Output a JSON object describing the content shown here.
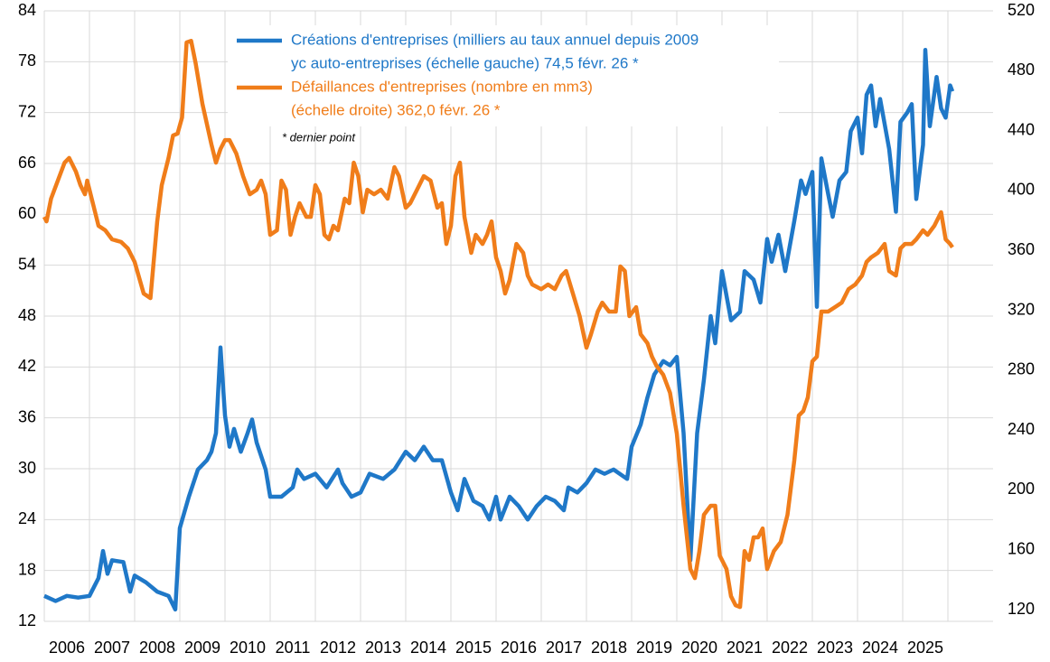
{
  "chart_data": {
    "type": "line",
    "xlim": [
      2006,
      2027
    ],
    "xticks": [
      2006,
      2007,
      2008,
      2009,
      2010,
      2011,
      2012,
      2013,
      2014,
      2015,
      2016,
      2017,
      2018,
      2019,
      2020,
      2021,
      2022,
      2023,
      2024,
      2025
    ],
    "ylim": [
      12,
      84
    ],
    "yticks": [
      12,
      18,
      24,
      30,
      36,
      42,
      48,
      54,
      60,
      66,
      72,
      78,
      84
    ],
    "y2lim": [
      112.2,
      520
    ],
    "y2ticks": [
      120,
      160,
      200,
      240,
      280,
      320,
      360,
      400,
      440,
      480,
      520
    ],
    "grid": true,
    "legend": "top",
    "note": "* dernier point",
    "series": [
      {
        "name": [
          "Créations d'entreprises (milliers au taux annuel depuis 2009",
          "yc auto-entreprises (échelle gauche)  74,5 févr. 26 *"
        ],
        "color": "#1f78c8",
        "axis": "y",
        "x": [
          2006.0,
          2006.25,
          2006.5,
          2006.75,
          2007.0,
          2007.2,
          2007.3,
          2007.4,
          2007.5,
          2007.75,
          2007.9,
          2008.0,
          2008.25,
          2008.5,
          2008.75,
          2008.9,
          2009.0,
          2009.2,
          2009.4,
          2009.6,
          2009.7,
          2009.8,
          2009.9,
          2010.0,
          2010.1,
          2010.2,
          2010.35,
          2010.5,
          2010.6,
          2010.7,
          2010.9,
          2011.0,
          2011.25,
          2011.5,
          2011.6,
          2011.75,
          2012.0,
          2012.25,
          2012.5,
          2012.6,
          2012.8,
          2013.0,
          2013.2,
          2013.5,
          2013.75,
          2014.0,
          2014.2,
          2014.4,
          2014.6,
          2014.8,
          2015.0,
          2015.15,
          2015.3,
          2015.5,
          2015.7,
          2015.85,
          2016.0,
          2016.1,
          2016.3,
          2016.5,
          2016.7,
          2016.9,
          2017.1,
          2017.3,
          2017.5,
          2017.6,
          2017.8,
          2018.0,
          2018.2,
          2018.4,
          2018.6,
          2018.9,
          2019.0,
          2019.2,
          2019.35,
          2019.5,
          2019.7,
          2019.85,
          2020.0,
          2020.15,
          2020.3,
          2020.45,
          2020.6,
          2020.75,
          2020.85,
          2021.0,
          2021.2,
          2021.4,
          2021.5,
          2021.7,
          2021.85,
          2022.0,
          2022.1,
          2022.25,
          2022.4,
          2022.6,
          2022.75,
          2022.85,
          2023.0,
          2023.1,
          2023.2,
          2023.35,
          2023.45,
          2023.6,
          2023.75,
          2023.85,
          2024.0,
          2024.1,
          2024.2,
          2024.3,
          2024.4,
          2024.5,
          2024.7,
          2024.85,
          2024.95,
          2025.1,
          2025.2,
          2025.3,
          2025.45,
          2025.5,
          2025.6,
          2025.75,
          2025.85,
          2025.95,
          2026.05,
          2026.1
        ],
        "values": [
          15.0,
          14.4,
          15.0,
          14.8,
          15.0,
          17.1,
          20.3,
          17.6,
          19.2,
          19.0,
          15.5,
          17.4,
          16.6,
          15.5,
          15.0,
          13.4,
          23.0,
          26.7,
          29.9,
          31.0,
          32.0,
          34.2,
          44.3,
          36.3,
          32.6,
          34.7,
          32.0,
          34.2,
          35.8,
          33.1,
          29.9,
          26.7,
          26.7,
          27.8,
          29.9,
          28.8,
          29.4,
          27.8,
          29.9,
          28.3,
          26.7,
          27.2,
          29.4,
          28.8,
          29.9,
          32.0,
          31.0,
          32.6,
          31.0,
          31.0,
          27.2,
          25.1,
          28.8,
          26.2,
          25.6,
          24.0,
          26.7,
          24.0,
          26.7,
          25.6,
          24.0,
          25.6,
          26.7,
          26.2,
          25.1,
          27.8,
          27.2,
          28.3,
          29.9,
          29.4,
          29.9,
          28.8,
          32.6,
          35.2,
          38.4,
          41.1,
          42.7,
          42.2,
          43.2,
          34.2,
          19.2,
          34.2,
          40.5,
          48.0,
          44.8,
          53.3,
          47.5,
          48.5,
          53.3,
          52.3,
          49.6,
          57.1,
          54.4,
          57.6,
          53.3,
          59.2,
          64.0,
          62.4,
          65.0,
          49.1,
          66.6,
          62.4,
          59.7,
          64.0,
          65.0,
          69.8,
          71.4,
          67.2,
          74.1,
          75.2,
          70.4,
          73.6,
          67.7,
          60.3,
          70.9,
          72.0,
          73.0,
          61.8,
          68.2,
          79.4,
          70.4,
          76.2,
          72.5,
          71.4,
          75.2,
          74.5
        ]
      },
      {
        "name": [
          "Défaillances d'entreprises (nombre en mm3)",
          "(échelle droite)  362,0 févr. 26 *"
        ],
        "color": "#f07d1a",
        "axis": "y2",
        "x": [
          2006.0,
          2006.05,
          2006.15,
          2006.3,
          2006.45,
          2006.55,
          2006.7,
          2006.8,
          2006.9,
          2006.95,
          2007.05,
          2007.2,
          2007.35,
          2007.5,
          2007.7,
          2007.85,
          2008.0,
          2008.2,
          2008.35,
          2008.5,
          2008.6,
          2008.75,
          2008.85,
          2008.95,
          2009.05,
          2009.15,
          2009.25,
          2009.35,
          2009.5,
          2009.7,
          2009.8,
          2009.9,
          2010.0,
          2010.1,
          2010.25,
          2010.4,
          2010.55,
          2010.7,
          2010.8,
          2010.9,
          2011.0,
          2011.15,
          2011.25,
          2011.35,
          2011.45,
          2011.55,
          2011.65,
          2011.8,
          2011.9,
          2012.0,
          2012.1,
          2012.2,
          2012.3,
          2012.4,
          2012.5,
          2012.65,
          2012.75,
          2012.85,
          2012.95,
          2013.05,
          2013.15,
          2013.3,
          2013.45,
          2013.6,
          2013.75,
          2013.85,
          2014.0,
          2014.1,
          2014.25,
          2014.4,
          2014.55,
          2014.7,
          2014.8,
          2014.9,
          2015.0,
          2015.1,
          2015.2,
          2015.3,
          2015.45,
          2015.55,
          2015.7,
          2015.8,
          2015.9,
          2016.0,
          2016.1,
          2016.2,
          2016.3,
          2016.45,
          2016.6,
          2016.7,
          2016.8,
          2017.0,
          2017.15,
          2017.3,
          2017.45,
          2017.55,
          2017.7,
          2017.85,
          2018.0,
          2018.1,
          2018.25,
          2018.35,
          2018.5,
          2018.65,
          2018.75,
          2018.85,
          2018.95,
          2019.1,
          2019.2,
          2019.35,
          2019.45,
          2019.55,
          2019.7,
          2019.85,
          2020.0,
          2020.15,
          2020.3,
          2020.4,
          2020.5,
          2020.6,
          2020.75,
          2020.85,
          2020.95,
          2021.1,
          2021.2,
          2021.3,
          2021.4,
          2021.5,
          2021.6,
          2021.7,
          2021.8,
          2021.9,
          2022.0,
          2022.15,
          2022.3,
          2022.45,
          2022.6,
          2022.7,
          2022.8,
          2022.9,
          2023.0,
          2023.1,
          2023.2,
          2023.35,
          2023.5,
          2023.65,
          2023.8,
          2023.95,
          2024.1,
          2024.2,
          2024.3,
          2024.45,
          2024.6,
          2024.7,
          2024.85,
          2024.95,
          2025.05,
          2025.2,
          2025.3,
          2025.45,
          2025.55,
          2025.7,
          2025.85,
          2025.95,
          2026.05,
          2026.1
        ],
        "values": [
          382.4,
          379.4,
          394.5,
          406.6,
          418.6,
          421.7,
          412.6,
          403.6,
          397.5,
          406.6,
          394.5,
          376.4,
          373.4,
          367.4,
          365.6,
          361.3,
          352.3,
          331.2,
          328.1,
          379.4,
          403.6,
          421.7,
          436.7,
          438.0,
          448.8,
          498.9,
          500.0,
          485.0,
          457.9,
          430.7,
          418.6,
          427.7,
          433.7,
          433.7,
          424.7,
          409.6,
          397.5,
          400.5,
          406.6,
          397.5,
          370.4,
          373.4,
          406.6,
          400.5,
          370.4,
          382.4,
          391.5,
          382.4,
          382.4,
          403.6,
          397.5,
          370.4,
          367.4,
          376.4,
          373.4,
          394.5,
          391.5,
          418.6,
          409.6,
          385.5,
          400.5,
          397.5,
          400.5,
          394.5,
          415.6,
          409.6,
          388.5,
          391.5,
          400.5,
          409.6,
          406.6,
          388.5,
          391.5,
          364.3,
          376.4,
          409.6,
          418.6,
          382.4,
          358.3,
          370.4,
          364.3,
          370.4,
          379.4,
          355.3,
          346.2,
          331.2,
          340.2,
          364.3,
          358.3,
          343.2,
          337.2,
          334.1,
          337.2,
          334.1,
          343.2,
          346.2,
          331.2,
          316.1,
          295.0,
          304.0,
          319.1,
          325.1,
          319.1,
          319.1,
          349.3,
          346.2,
          316.1,
          322.1,
          304.0,
          298.0,
          289.0,
          282.9,
          276.9,
          264.8,
          237.6,
          189.4,
          147.1,
          141.1,
          159.2,
          183.4,
          189.4,
          189.4,
          156.2,
          147.1,
          129.0,
          123.0,
          121.8,
          159.2,
          153.2,
          168.3,
          168.3,
          174.3,
          147.1,
          159.2,
          165.2,
          183.4,
          219.6,
          249.7,
          252.7,
          261.8,
          285.9,
          289.0,
          319.1,
          319.1,
          322.1,
          325.1,
          334.1,
          337.2,
          343.2,
          352.3,
          355.3,
          358.3,
          364.3,
          346.2,
          343.2,
          361.3,
          364.3,
          364.3,
          367.4,
          373.4,
          370.4,
          376.4,
          385.5,
          367.4,
          364.3,
          362.0
        ]
      }
    ]
  }
}
